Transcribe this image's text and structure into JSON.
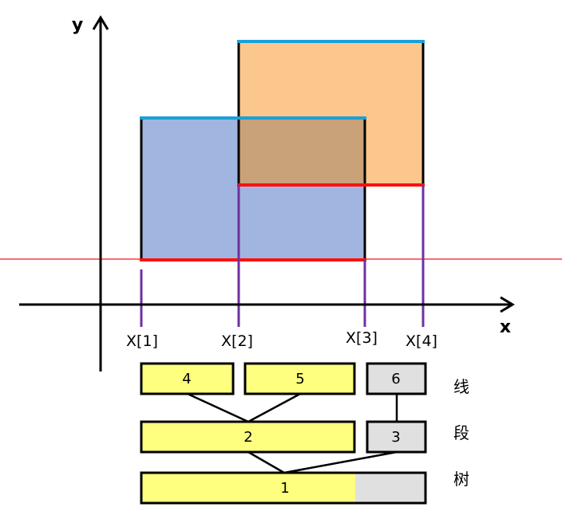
{
  "axes": {
    "x_label": "x",
    "y_label": "y"
  },
  "x_marks": [
    "X[1]",
    "X[2]",
    "X[3]",
    "X[4]"
  ],
  "segment_tree": {
    "nodes": {
      "n4": "4",
      "n5": "5",
      "n6": "6",
      "n2": "2",
      "n3": "3",
      "n1": "1"
    },
    "side_label": [
      "线",
      "段",
      "树"
    ]
  },
  "colors": {
    "blue_rect": "#a0b6e0",
    "orange_rect": "#fbc78c",
    "overlap": "#c9a27a",
    "top_edge": "#1aa0d8",
    "bottom_edge": "#ff1010",
    "scan_line": "#ff1010",
    "guide_line": "#7030a0",
    "node_yellow": "#ffff7f",
    "node_gray": "#e0e0e0"
  }
}
